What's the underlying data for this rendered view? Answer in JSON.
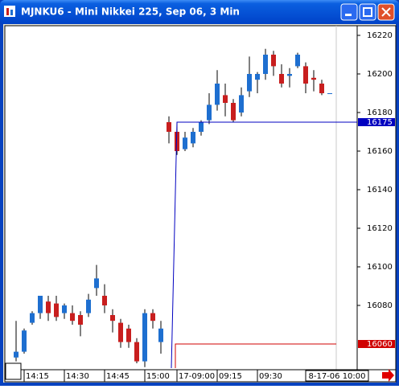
{
  "chart_data": {
    "type": "candlestick",
    "title": "MJNKU6 - Mini Nikkei 225, Sep 06, 3 Min",
    "categories": [
      null,
      "14:15",
      null,
      null,
      null,
      null,
      "14:30",
      null,
      null,
      null,
      null,
      "14:45",
      null,
      null,
      null,
      null,
      "15:00",
      null,
      null,
      null,
      "17-09:00",
      null,
      null,
      null,
      null,
      "09:15",
      null,
      null,
      null,
      null,
      "09:30",
      null,
      null,
      null,
      null,
      null,
      null,
      null,
      null,
      null
    ],
    "open": [
      16053,
      16056,
      16071,
      16076,
      16082,
      16081,
      16076,
      16076,
      16075,
      16076,
      16089,
      16085,
      16075,
      16071,
      16068,
      16061,
      16051,
      16076,
      16061,
      16175,
      16170,
      16161,
      16164,
      16170,
      16176,
      16184,
      16189,
      16185,
      16180,
      16191,
      16197,
      16200,
      16210,
      16200,
      16199,
      16204,
      16204,
      16198,
      16195,
      16190
    ],
    "high": [
      16072,
      16068,
      16077,
      16085,
      16085,
      16085,
      16081,
      16080,
      16077,
      16086,
      16101,
      16091,
      16078,
      16073,
      16070,
      16063,
      16078,
      16078,
      16072,
      16178,
      16175,
      16170,
      16172,
      16176,
      16190,
      16202,
      16195,
      16187,
      16193,
      16209,
      16201,
      16213,
      16212,
      16205,
      16203,
      16211,
      16206,
      16202,
      16197,
      16190
    ],
    "low": [
      16051,
      16055,
      16070,
      16073,
      16072,
      16072,
      16073,
      16070,
      16064,
      16074,
      16085,
      16076,
      16066,
      16058,
      16058,
      16050,
      16048,
      16068,
      16055,
      16164,
      16158,
      16160,
      16162,
      16168,
      16174,
      16181,
      16178,
      16175,
      16178,
      16188,
      16190,
      16197,
      16199,
      16193,
      16193,
      16203,
      16190,
      16191,
      16189,
      16190
    ],
    "close": [
      16056,
      16067,
      16076,
      16085,
      16076,
      16074,
      16080,
      16072,
      16070,
      16083,
      16094,
      16080,
      16072,
      16061,
      16061,
      16051,
      16076,
      16072,
      16068,
      16170,
      16160,
      16167,
      16170,
      16175,
      16184,
      16195,
      16185,
      16176,
      16189,
      16200,
      16200,
      16210,
      16204,
      16195,
      16200,
      16210,
      16195,
      16197,
      16190,
      16190
    ],
    "up_color": "#1e6fd0",
    "down_color": "#c81e1e",
    "ylim": [
      16047.5,
      16225
    ],
    "yticks": [
      16080,
      16100,
      16120,
      16140,
      16160,
      16180,
      16200,
      16220
    ],
    "reference_lines": [
      {
        "value": 16175,
        "color": "#0000c0"
      },
      {
        "value": 16060,
        "color": "#d00000"
      }
    ],
    "cursor_label": "8-17-06 10:00"
  }
}
